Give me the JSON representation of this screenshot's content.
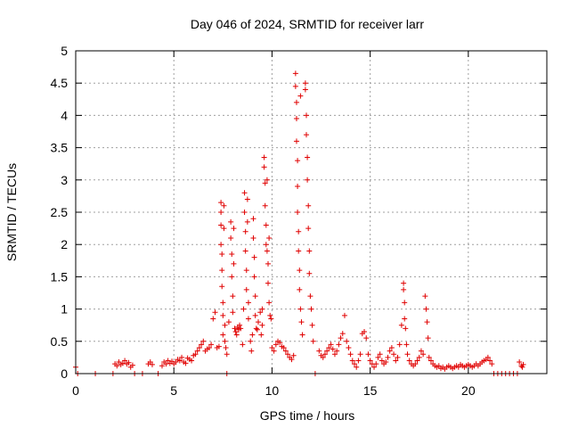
{
  "chart_data": {
    "type": "scatter",
    "title": "Day 046 of 2024, SRMTID for receiver larr",
    "xlabel": "GPS time / hours",
    "ylabel": "SRMTID / TECUs",
    "xlim": [
      0,
      24
    ],
    "ylim": [
      0,
      5
    ],
    "x_ticks": [
      0,
      5,
      10,
      15,
      20
    ],
    "x_tick_labels": [
      "0",
      "5",
      "10",
      "15",
      "20"
    ],
    "y_ticks": [
      0,
      0.5,
      1,
      1.5,
      2,
      2.5,
      3,
      3.5,
      4,
      4.5,
      5
    ],
    "y_tick_labels": [
      "0",
      "0.5",
      "1",
      "1.5",
      "2",
      "2.5",
      "3",
      "3.5",
      "4",
      "4.5",
      "5"
    ],
    "grid": true,
    "marker": "plus",
    "series": [
      {
        "name": "SRMTID",
        "color": "#e00000",
        "points": [
          [
            0.0,
            0.1
          ],
          [
            0.1,
            0.0
          ],
          [
            1.0,
            0.0
          ],
          [
            1.9,
            0.0
          ],
          [
            2.0,
            0.15
          ],
          [
            2.1,
            0.12
          ],
          [
            2.2,
            0.18
          ],
          [
            2.3,
            0.14
          ],
          [
            2.4,
            0.16
          ],
          [
            2.5,
            0.2
          ],
          [
            2.6,
            0.15
          ],
          [
            2.7,
            0.17
          ],
          [
            2.8,
            0.1
          ],
          [
            2.9,
            0.13
          ],
          [
            3.0,
            0.0
          ],
          [
            3.4,
            0.0
          ],
          [
            3.7,
            0.15
          ],
          [
            3.8,
            0.18
          ],
          [
            3.9,
            0.14
          ],
          [
            4.2,
            0.0
          ],
          [
            4.4,
            0.12
          ],
          [
            4.5,
            0.18
          ],
          [
            4.6,
            0.15
          ],
          [
            4.7,
            0.2
          ],
          [
            4.8,
            0.16
          ],
          [
            4.9,
            0.19
          ],
          [
            5.0,
            0.15
          ],
          [
            5.1,
            0.18
          ],
          [
            5.2,
            0.22
          ],
          [
            5.3,
            0.2
          ],
          [
            5.4,
            0.25
          ],
          [
            5.5,
            0.18
          ],
          [
            5.6,
            0.16
          ],
          [
            5.7,
            0.24
          ],
          [
            5.8,
            0.22
          ],
          [
            5.9,
            0.2
          ],
          [
            6.0,
            0.28
          ],
          [
            6.1,
            0.3
          ],
          [
            6.2,
            0.35
          ],
          [
            6.3,
            0.4
          ],
          [
            6.4,
            0.45
          ],
          [
            6.5,
            0.5
          ],
          [
            6.6,
            0.35
          ],
          [
            6.7,
            0.38
          ],
          [
            6.8,
            0.4
          ],
          [
            6.9,
            0.45
          ],
          [
            7.0,
            0.85
          ],
          [
            7.1,
            0.95
          ],
          [
            7.2,
            0.4
          ],
          [
            7.3,
            0.42
          ],
          [
            7.4,
            2.65
          ],
          [
            7.4,
            2.5
          ],
          [
            7.4,
            2.3
          ],
          [
            7.4,
            2.0
          ],
          [
            7.45,
            1.85
          ],
          [
            7.45,
            1.6
          ],
          [
            7.45,
            1.35
          ],
          [
            7.5,
            1.1
          ],
          [
            7.5,
            0.9
          ],
          [
            7.5,
            0.6
          ],
          [
            7.55,
            2.6
          ],
          [
            7.55,
            2.25
          ],
          [
            7.6,
            0.75
          ],
          [
            7.6,
            0.5
          ],
          [
            7.65,
            0.4
          ],
          [
            7.7,
            0.3
          ],
          [
            7.7,
            0.0
          ],
          [
            7.8,
            0.8
          ],
          [
            7.9,
            2.35
          ],
          [
            7.9,
            2.1
          ],
          [
            7.95,
            1.85
          ],
          [
            7.95,
            1.5
          ],
          [
            8.0,
            1.2
          ],
          [
            8.0,
            0.95
          ],
          [
            8.05,
            2.25
          ],
          [
            8.05,
            1.7
          ],
          [
            8.1,
            0.7
          ],
          [
            8.15,
            0.65
          ],
          [
            8.2,
            0.6
          ],
          [
            8.25,
            0.72
          ],
          [
            8.3,
            0.68
          ],
          [
            8.35,
            0.75
          ],
          [
            8.4,
            0.7
          ],
          [
            8.5,
            0.45
          ],
          [
            8.55,
            1.0
          ],
          [
            8.6,
            2.8
          ],
          [
            8.6,
            2.5
          ],
          [
            8.65,
            2.2
          ],
          [
            8.65,
            1.9
          ],
          [
            8.7,
            1.6
          ],
          [
            8.7,
            1.3
          ],
          [
            8.75,
            2.7
          ],
          [
            8.75,
            2.35
          ],
          [
            8.8,
            1.1
          ],
          [
            8.8,
            0.85
          ],
          [
            8.9,
            0.5
          ],
          [
            8.95,
            0.35
          ],
          [
            9.0,
            0.6
          ],
          [
            9.05,
            2.4
          ],
          [
            9.05,
            2.1
          ],
          [
            9.1,
            1.8
          ],
          [
            9.1,
            1.5
          ],
          [
            9.15,
            1.2
          ],
          [
            9.15,
            0.9
          ],
          [
            9.2,
            0.7
          ],
          [
            9.25,
            0.68
          ],
          [
            9.3,
            0.8
          ],
          [
            9.4,
            0.95
          ],
          [
            9.45,
            0.6
          ],
          [
            9.5,
            1.0
          ],
          [
            9.5,
            0.75
          ],
          [
            9.6,
            3.35
          ],
          [
            9.6,
            3.2
          ],
          [
            9.65,
            2.95
          ],
          [
            9.65,
            2.6
          ],
          [
            9.7,
            2.3
          ],
          [
            9.7,
            2.0
          ],
          [
            9.75,
            3.0
          ],
          [
            9.75,
            1.9
          ],
          [
            9.8,
            1.7
          ],
          [
            9.8,
            1.4
          ],
          [
            9.85,
            1.1
          ],
          [
            9.85,
            2.1
          ],
          [
            9.9,
            0.9
          ],
          [
            9.95,
            0.85
          ],
          [
            10.0,
            0.4
          ],
          [
            10.1,
            0.35
          ],
          [
            10.2,
            0.45
          ],
          [
            10.3,
            0.5
          ],
          [
            10.4,
            0.48
          ],
          [
            10.5,
            0.42
          ],
          [
            10.6,
            0.4
          ],
          [
            10.7,
            0.35
          ],
          [
            10.8,
            0.3
          ],
          [
            10.9,
            0.25
          ],
          [
            11.0,
            0.22
          ],
          [
            11.1,
            0.28
          ],
          [
            11.2,
            4.65
          ],
          [
            11.2,
            4.45
          ],
          [
            11.25,
            4.2
          ],
          [
            11.25,
            3.95
          ],
          [
            11.25,
            3.6
          ],
          [
            11.3,
            3.3
          ],
          [
            11.3,
            2.9
          ],
          [
            11.3,
            2.5
          ],
          [
            11.35,
            2.2
          ],
          [
            11.35,
            1.9
          ],
          [
            11.4,
            1.6
          ],
          [
            11.4,
            1.3
          ],
          [
            11.45,
            4.3
          ],
          [
            11.45,
            1.0
          ],
          [
            11.5,
            0.8
          ],
          [
            11.55,
            0.6
          ],
          [
            11.7,
            4.5
          ],
          [
            11.7,
            4.4
          ],
          [
            11.75,
            4.0
          ],
          [
            11.75,
            3.7
          ],
          [
            11.8,
            3.35
          ],
          [
            11.8,
            3.0
          ],
          [
            11.85,
            2.6
          ],
          [
            11.85,
            2.25
          ],
          [
            11.9,
            1.9
          ],
          [
            11.9,
            1.55
          ],
          [
            11.95,
            1.2
          ],
          [
            12.0,
            1.0
          ],
          [
            12.05,
            0.75
          ],
          [
            12.1,
            0.5
          ],
          [
            12.2,
            0.0
          ],
          [
            12.4,
            0.35
          ],
          [
            12.5,
            0.28
          ],
          [
            12.6,
            0.25
          ],
          [
            12.7,
            0.3
          ],
          [
            12.8,
            0.35
          ],
          [
            12.9,
            0.4
          ],
          [
            13.0,
            0.45
          ],
          [
            13.1,
            0.38
          ],
          [
            13.2,
            0.3
          ],
          [
            13.3,
            0.35
          ],
          [
            13.4,
            0.45
          ],
          [
            13.5,
            0.55
          ],
          [
            13.6,
            0.62
          ],
          [
            13.7,
            0.9
          ],
          [
            13.8,
            0.5
          ],
          [
            13.9,
            0.4
          ],
          [
            14.0,
            0.3
          ],
          [
            14.1,
            0.2
          ],
          [
            14.2,
            0.15
          ],
          [
            14.3,
            0.1
          ],
          [
            14.4,
            0.2
          ],
          [
            14.5,
            0.3
          ],
          [
            14.6,
            0.62
          ],
          [
            14.7,
            0.65
          ],
          [
            14.8,
            0.55
          ],
          [
            14.9,
            0.3
          ],
          [
            15.0,
            0.2
          ],
          [
            15.1,
            0.15
          ],
          [
            15.2,
            0.1
          ],
          [
            15.3,
            0.15
          ],
          [
            15.4,
            0.25
          ],
          [
            15.5,
            0.3
          ],
          [
            15.6,
            0.2
          ],
          [
            15.7,
            0.15
          ],
          [
            15.8,
            0.18
          ],
          [
            15.9,
            0.25
          ],
          [
            16.0,
            0.35
          ],
          [
            16.1,
            0.4
          ],
          [
            16.2,
            0.3
          ],
          [
            16.3,
            0.2
          ],
          [
            16.4,
            0.25
          ],
          [
            16.5,
            0.45
          ],
          [
            16.6,
            0.75
          ],
          [
            16.7,
            1.4
          ],
          [
            16.7,
            1.3
          ],
          [
            16.75,
            1.1
          ],
          [
            16.75,
            0.85
          ],
          [
            16.8,
            0.7
          ],
          [
            16.85,
            0.45
          ],
          [
            16.9,
            0.3
          ],
          [
            17.0,
            0.2
          ],
          [
            17.1,
            0.15
          ],
          [
            17.2,
            0.12
          ],
          [
            17.3,
            0.15
          ],
          [
            17.4,
            0.2
          ],
          [
            17.5,
            0.25
          ],
          [
            17.6,
            0.35
          ],
          [
            17.7,
            0.3
          ],
          [
            17.8,
            1.2
          ],
          [
            17.85,
            1.0
          ],
          [
            17.9,
            0.8
          ],
          [
            17.95,
            0.55
          ],
          [
            18.0,
            0.25
          ],
          [
            18.1,
            0.2
          ],
          [
            18.2,
            0.15
          ],
          [
            18.3,
            0.12
          ],
          [
            18.4,
            0.1
          ],
          [
            18.5,
            0.12
          ],
          [
            18.6,
            0.08
          ],
          [
            18.7,
            0.1
          ],
          [
            18.8,
            0.07
          ],
          [
            18.9,
            0.1
          ],
          [
            19.0,
            0.12
          ],
          [
            19.1,
            0.1
          ],
          [
            19.2,
            0.08
          ],
          [
            19.3,
            0.1
          ],
          [
            19.4,
            0.12
          ],
          [
            19.5,
            0.1
          ],
          [
            19.6,
            0.14
          ],
          [
            19.7,
            0.12
          ],
          [
            19.8,
            0.1
          ],
          [
            19.9,
            0.12
          ],
          [
            20.0,
            0.14
          ],
          [
            20.1,
            0.12
          ],
          [
            20.2,
            0.1
          ],
          [
            20.3,
            0.12
          ],
          [
            20.4,
            0.15
          ],
          [
            20.5,
            0.12
          ],
          [
            20.6,
            0.15
          ],
          [
            20.7,
            0.18
          ],
          [
            20.8,
            0.2
          ],
          [
            20.9,
            0.22
          ],
          [
            21.0,
            0.25
          ],
          [
            21.1,
            0.2
          ],
          [
            21.2,
            0.15
          ],
          [
            21.3,
            0.0
          ],
          [
            21.5,
            0.0
          ],
          [
            21.7,
            0.0
          ],
          [
            21.9,
            0.0
          ],
          [
            22.1,
            0.0
          ],
          [
            22.3,
            0.0
          ],
          [
            22.5,
            0.0
          ],
          [
            22.6,
            0.18
          ],
          [
            22.7,
            0.12
          ],
          [
            22.75,
            0.1
          ],
          [
            22.8,
            0.14
          ]
        ]
      }
    ]
  }
}
